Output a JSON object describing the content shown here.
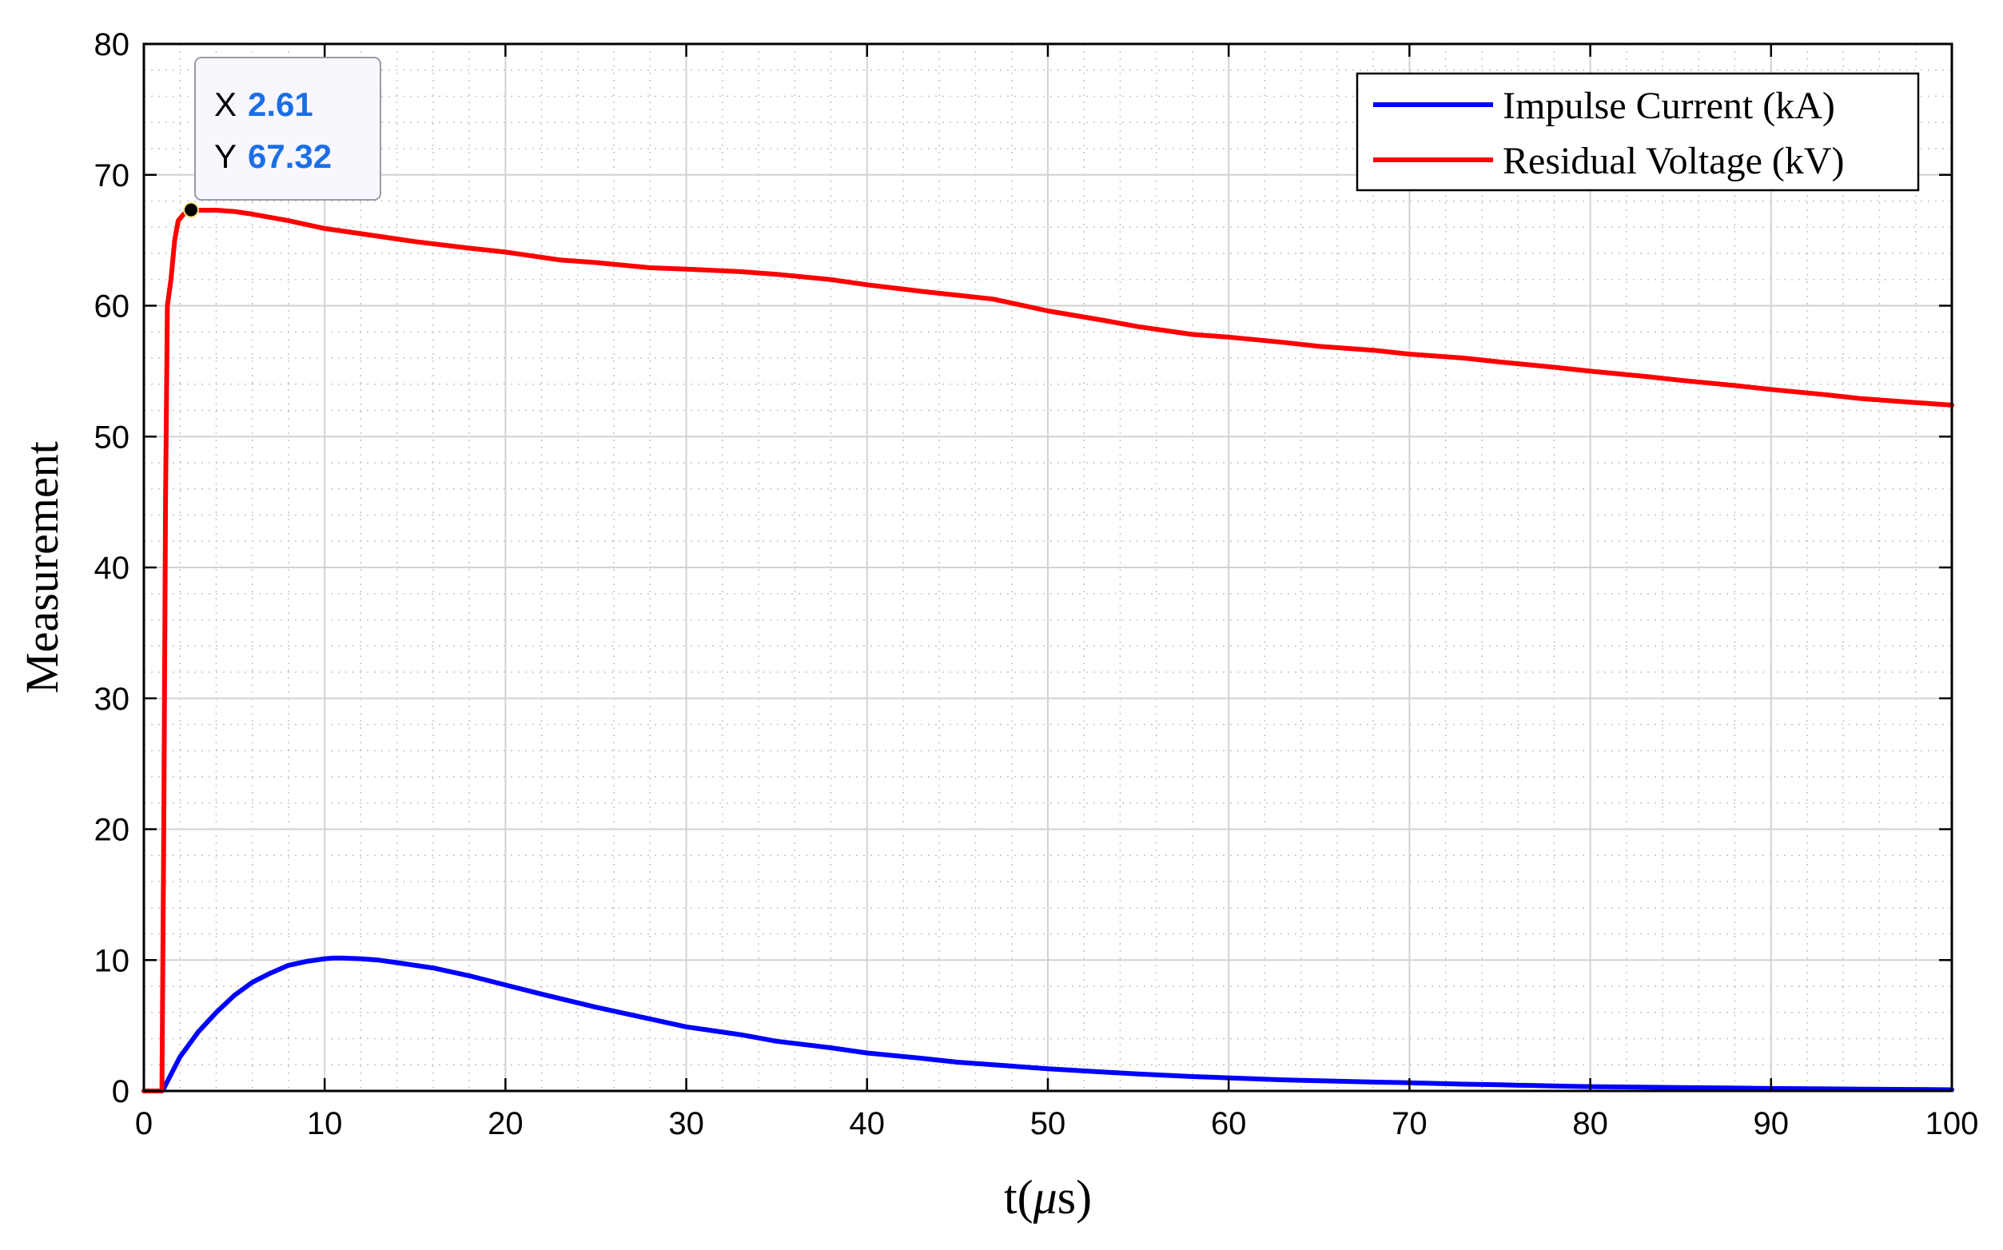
{
  "chart_data": {
    "type": "line",
    "title": "",
    "xlabel": "t(μs)",
    "xlabel_parts": {
      "prefix": "t(",
      "symbol": "μ",
      "suffix": "s)"
    },
    "ylabel": "Measurement",
    "xlim": [
      0,
      100
    ],
    "ylim": [
      0,
      80
    ],
    "xticks": [
      0,
      10,
      20,
      30,
      40,
      50,
      60,
      70,
      80,
      90,
      100
    ],
    "yticks": [
      0,
      10,
      20,
      30,
      40,
      50,
      60,
      70,
      80
    ],
    "grid": true,
    "minor_grid": true,
    "legend_position": "top-right",
    "series": [
      {
        "name": "Impulse Current (kA)",
        "color": "#0000ff",
        "x": [
          0,
          1.0,
          1.1,
          2,
          3,
          4,
          5,
          6,
          7,
          8,
          9,
          10,
          10.5,
          11,
          12,
          13,
          14,
          15,
          16,
          18,
          20,
          22,
          25,
          28,
          30,
          33,
          35,
          38,
          40,
          43,
          45,
          48,
          50,
          53,
          55,
          58,
          60,
          63,
          65,
          68,
          70,
          73,
          75,
          78,
          80,
          85,
          90,
          95,
          100
        ],
        "y": [
          0,
          0,
          0.2,
          2.6,
          4.5,
          6.0,
          7.3,
          8.3,
          9.0,
          9.6,
          9.9,
          10.1,
          10.15,
          10.15,
          10.1,
          10.0,
          9.8,
          9.6,
          9.4,
          8.8,
          8.1,
          7.4,
          6.4,
          5.5,
          4.9,
          4.3,
          3.8,
          3.3,
          2.9,
          2.5,
          2.2,
          1.9,
          1.7,
          1.45,
          1.3,
          1.1,
          1.0,
          0.85,
          0.78,
          0.68,
          0.62,
          0.52,
          0.47,
          0.38,
          0.33,
          0.26,
          0.19,
          0.14,
          0.09
        ]
      },
      {
        "name": "Residual Voltage (kV)",
        "color": "#ff0000",
        "x": [
          0,
          0.9,
          1.0,
          1.1,
          1.2,
          1.3,
          1.5,
          1.7,
          1.9,
          2.2,
          2.61,
          3,
          4,
          5,
          6,
          8,
          10,
          12,
          15,
          18,
          20,
          23,
          25,
          28,
          30,
          33,
          35,
          38,
          40,
          43,
          45,
          47,
          48,
          50,
          53,
          55,
          58,
          60,
          63,
          65,
          68,
          70,
          73,
          75,
          78,
          80,
          83,
          85,
          88,
          90,
          93,
          95,
          98,
          100
        ],
        "y": [
          0,
          0,
          0,
          20,
          45,
          60,
          62,
          65,
          66.5,
          67.0,
          67.32,
          67.3,
          67.3,
          67.2,
          67.0,
          66.5,
          65.9,
          65.5,
          64.9,
          64.4,
          64.1,
          63.5,
          63.3,
          62.9,
          62.8,
          62.6,
          62.4,
          62.0,
          61.6,
          61.1,
          60.8,
          60.5,
          60.2,
          59.6,
          58.9,
          58.4,
          57.8,
          57.6,
          57.2,
          56.9,
          56.6,
          56.3,
          56.0,
          55.7,
          55.3,
          55.0,
          54.6,
          54.3,
          53.9,
          53.6,
          53.2,
          52.9,
          52.6,
          52.4
        ]
      }
    ],
    "datatip": {
      "x_label": "X",
      "x_value": "2.61",
      "y_label": "Y",
      "y_value": "67.32",
      "x": 2.61,
      "y": 67.32
    }
  }
}
